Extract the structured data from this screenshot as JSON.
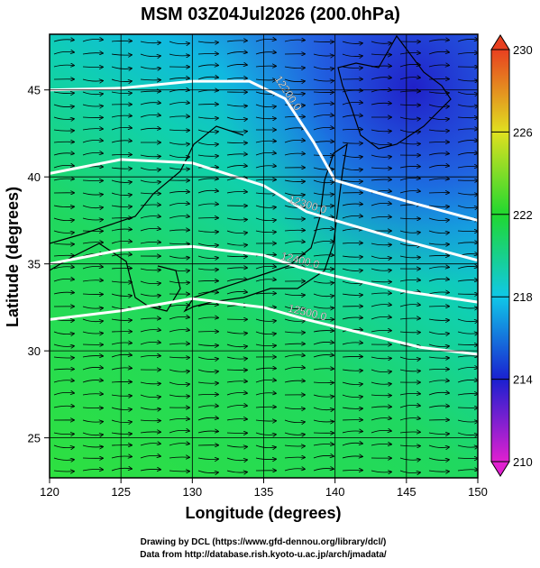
{
  "chart_data": {
    "type": "contour",
    "title": "MSM 03Z04Jul2026 (200.0hPa)",
    "xlabel": "Longitude (degrees)",
    "ylabel": "Latitude  (degrees)",
    "xlim": [
      120,
      150
    ],
    "ylim": [
      22.7,
      48.2
    ],
    "xticks": [
      120,
      125,
      130,
      135,
      140,
      145,
      150
    ],
    "yticks": [
      25,
      30,
      35,
      40,
      45
    ],
    "colorbar": {
      "lim": [
        210,
        230
      ],
      "ticks": [
        210,
        214,
        218,
        222,
        226,
        230
      ],
      "colors": [
        "#e020d0",
        "#1a20d0",
        "#10c8e8",
        "#20d830",
        "#e0e020",
        "#e84020"
      ]
    },
    "contours": [
      {
        "value": 12200,
        "label": "12200.0",
        "lon": [
          120,
          125,
          130,
          134,
          136.5,
          138.5,
          140,
          145,
          150
        ],
        "lat": [
          45,
          45.1,
          45.5,
          45.5,
          44.5,
          42,
          39.8,
          38.6,
          37.5
        ]
      },
      {
        "value": 12300,
        "label": "12300.0",
        "lon": [
          120,
          125,
          130,
          135,
          138,
          140,
          145,
          150
        ],
        "lat": [
          40.2,
          41,
          40.8,
          39.5,
          38,
          37.5,
          36.3,
          35.2
        ]
      },
      {
        "value": 12400,
        "label": "12400.0",
        "lon": [
          120,
          125,
          130,
          135,
          137.5,
          140,
          145,
          150
        ],
        "lat": [
          35,
          35.8,
          36,
          35.5,
          34.8,
          34.3,
          33.4,
          32.8
        ]
      },
      {
        "value": 12500,
        "label": "12500.0",
        "lon": [
          120,
          125,
          130,
          135,
          138,
          142,
          146,
          150
        ],
        "lat": [
          31.8,
          32.3,
          33,
          32.5,
          31.8,
          31,
          30.2,
          29.8
        ]
      }
    ],
    "credits": [
      "Drawing by DCL (https://www.gfd-dennou.org/library/dcl/)",
      "Data from http://database.rish.kyoto-u.ac.jp/arch/jmadata/"
    ]
  }
}
